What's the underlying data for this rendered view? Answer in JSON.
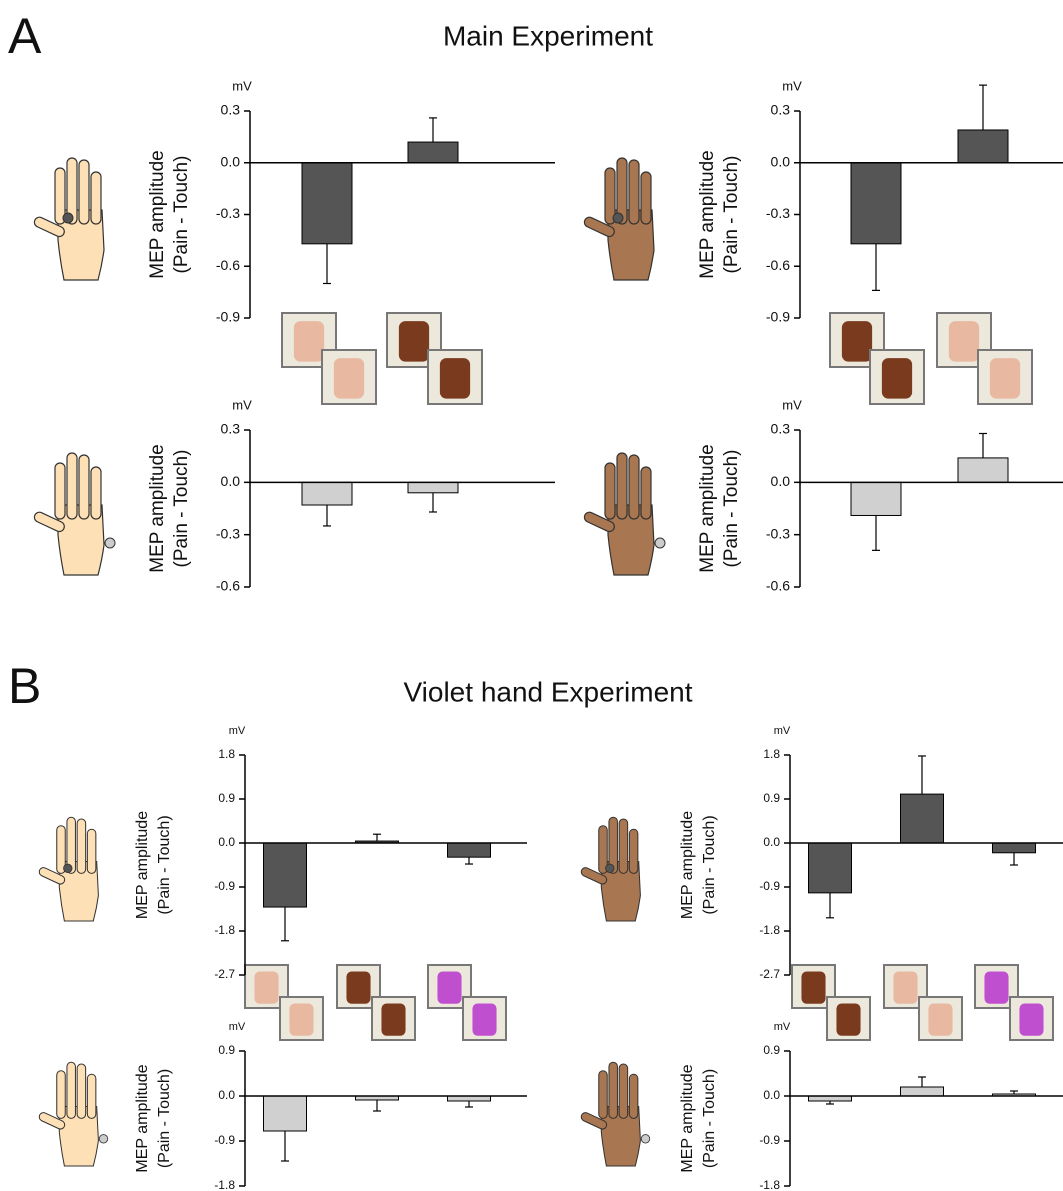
{
  "panels": [
    {
      "label": "A",
      "title": "Main Experiment"
    },
    {
      "label": "B",
      "title": "Violet hand Experiment"
    }
  ],
  "chart_data": [
    {
      "type": "bar",
      "unit": "mV",
      "ylabel": [
        "MEP amplitude",
        "(Pain - Touch)"
      ],
      "categories": [
        null,
        null
      ],
      "values": [
        -0.47,
        0.12
      ],
      "errors": [
        0.23,
        0.14
      ],
      "color": "#555555",
      "ylim": [
        -0.9,
        0.3
      ],
      "yticks": [
        0.3,
        {
          "value": 0,
          "label": "0.0"
        },
        -0.3,
        -0.6,
        -0.9
      ]
    },
    {
      "type": "bar",
      "unit": "mV",
      "ylabel": [
        "MEP amplitude",
        "(Pain - Touch)"
      ],
      "categories": [
        null,
        null
      ],
      "values": [
        -0.47,
        0.19
      ],
      "errors": [
        0.27,
        0.26
      ],
      "color": "#555555",
      "ylim": [
        -0.9,
        0.3
      ],
      "yticks": [
        0.3,
        {
          "value": 0,
          "label": "0.0"
        },
        -0.3,
        -0.6,
        -0.9
      ]
    },
    {
      "type": "bar",
      "unit": "mV",
      "ylabel": [
        "MEP amplitude",
        "(Pain - Touch)"
      ],
      "categories": [
        null,
        null
      ],
      "values": [
        -0.13,
        -0.06
      ],
      "errors": [
        0.12,
        0.11
      ],
      "color": "#d0d0d0",
      "ylim": [
        -0.6,
        0.3
      ],
      "yticks": [
        0.3,
        {
          "value": 0,
          "label": "0.0"
        },
        -0.3,
        -0.6
      ]
    },
    {
      "type": "bar",
      "unit": "mV",
      "ylabel": [
        "MEP amplitude",
        "(Pain - Touch)"
      ],
      "categories": [
        null,
        null
      ],
      "values": [
        -0.19,
        0.14
      ],
      "errors": [
        0.2,
        0.14
      ],
      "color": "#d0d0d0",
      "ylim": [
        -0.6,
        0.3
      ],
      "yticks": [
        0.3,
        {
          "value": 0,
          "label": "0.0"
        },
        -0.3,
        -0.6
      ]
    },
    {
      "type": "bar",
      "unit": "mV",
      "ylabel": [
        "MEP amplitude",
        "(Pain - Touch)"
      ],
      "categories": [
        null,
        null,
        null
      ],
      "values": [
        -1.31,
        0.04,
        -0.29
      ],
      "errors": [
        0.69,
        0.14,
        0.14
      ],
      "color": "#555555",
      "ylim": [
        -2.7,
        1.8
      ],
      "yticks": [
        1.8,
        0.9,
        {
          "value": 0,
          "label": "0.0"
        },
        -0.9,
        -1.8,
        -2.7
      ]
    },
    {
      "type": "bar",
      "unit": "mV",
      "ylabel": [
        "MEP amplitude",
        "(Pain - Touch)"
      ],
      "categories": [
        null,
        null,
        null
      ],
      "values": [
        -1.02,
        1.0,
        -0.2
      ],
      "errors": [
        0.51,
        0.78,
        0.25
      ],
      "color": "#555555",
      "ylim": [
        -2.7,
        1.8
      ],
      "yticks": [
        1.8,
        0.9,
        {
          "value": 0,
          "label": "0.0"
        },
        -0.9,
        -1.8,
        -2.7
      ]
    },
    {
      "type": "bar",
      "unit": "mV",
      "ylabel": [
        "MEP amplitude",
        "(Pain - Touch)"
      ],
      "categories": [
        null,
        null,
        null
      ],
      "values": [
        -0.7,
        -0.08,
        -0.1
      ],
      "errors": [
        0.6,
        0.22,
        0.12
      ],
      "color": "#d0d0d0",
      "ylim": [
        -1.8,
        0.9
      ],
      "yticks": [
        0.9,
        {
          "value": 0,
          "label": "0.0"
        },
        -0.9,
        -1.8
      ]
    },
    {
      "type": "bar",
      "unit": "mV",
      "ylabel": [
        "MEP amplitude",
        "(Pain - Touch)"
      ],
      "categories": [
        null,
        null,
        null
      ],
      "values": [
        -0.1,
        0.18,
        0.04
      ],
      "errors": [
        0.06,
        0.2,
        0.06
      ],
      "color": "#d0d0d0",
      "ylim": [
        -1.8,
        0.9
      ],
      "yticks": [
        0.9,
        {
          "value": 0,
          "label": "0.0"
        },
        -0.9,
        -1.8
      ]
    }
  ]
}
